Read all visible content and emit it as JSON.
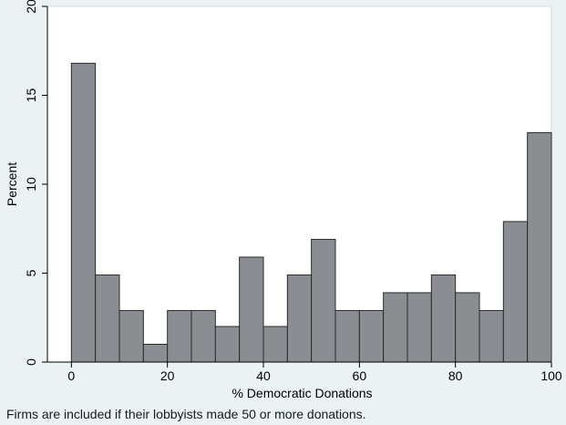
{
  "caption": "Firms are included if their lobbyists made 50 or more donations.",
  "colors": {
    "background": "#eaf2f3",
    "plot_background": "#ffffff",
    "bar_fill": "#8a8d92",
    "bar_stroke": "#2b2b2b",
    "axis": "#000000"
  },
  "chart_data": {
    "type": "bar",
    "title": "",
    "xlabel": "% Democratic Donations",
    "ylabel": "Percent",
    "xlim": [
      -5,
      100
    ],
    "ylim": [
      0,
      20
    ],
    "xticks": [
      0,
      20,
      40,
      60,
      80,
      100
    ],
    "yticks": [
      0,
      5,
      10,
      15,
      20
    ],
    "bin_width": 5,
    "bins": [
      {
        "start": 0,
        "end": 5,
        "value": 16.8
      },
      {
        "start": 5,
        "end": 10,
        "value": 4.9
      },
      {
        "start": 10,
        "end": 15,
        "value": 2.9
      },
      {
        "start": 15,
        "end": 20,
        "value": 1
      },
      {
        "start": 20,
        "end": 25,
        "value": 2.9
      },
      {
        "start": 25,
        "end": 30,
        "value": 2.9
      },
      {
        "start": 30,
        "end": 35,
        "value": 2
      },
      {
        "start": 35,
        "end": 40,
        "value": 5.9
      },
      {
        "start": 40,
        "end": 45,
        "value": 2
      },
      {
        "start": 45,
        "end": 50,
        "value": 4.9
      },
      {
        "start": 50,
        "end": 55,
        "value": 6.9
      },
      {
        "start": 55,
        "end": 60,
        "value": 2.9
      },
      {
        "start": 60,
        "end": 65,
        "value": 2.9
      },
      {
        "start": 65,
        "end": 70,
        "value": 3.9
      },
      {
        "start": 70,
        "end": 75,
        "value": 3.9
      },
      {
        "start": 75,
        "end": 80,
        "value": 4.9
      },
      {
        "start": 80,
        "end": 85,
        "value": 3.9
      },
      {
        "start": 85,
        "end": 90,
        "value": 2.9
      },
      {
        "start": 90,
        "end": 95,
        "value": 7.9
      },
      {
        "start": 95,
        "end": 100,
        "value": 12.9
      }
    ],
    "grid": false,
    "legend": "none"
  }
}
